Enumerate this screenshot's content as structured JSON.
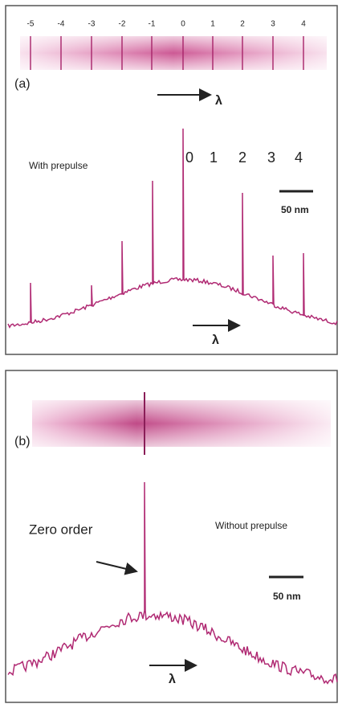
{
  "panel_a": {
    "order_labels": [
      "-5",
      "-4",
      "-3",
      "-2",
      "-1",
      "0",
      "1",
      "2",
      "3",
      "4"
    ],
    "label": "(a)",
    "lambda": "λ",
    "annotation": "With prepulse",
    "peak_labels": [
      "0",
      "1",
      "2",
      "3",
      "4"
    ],
    "scale": "50 nm",
    "lambda_2": "λ"
  },
  "panel_b": {
    "label": "(b)",
    "zero_order": "Zero order",
    "annotation": "Without prepulse",
    "scale": "50 nm",
    "lambda": "λ"
  }
}
